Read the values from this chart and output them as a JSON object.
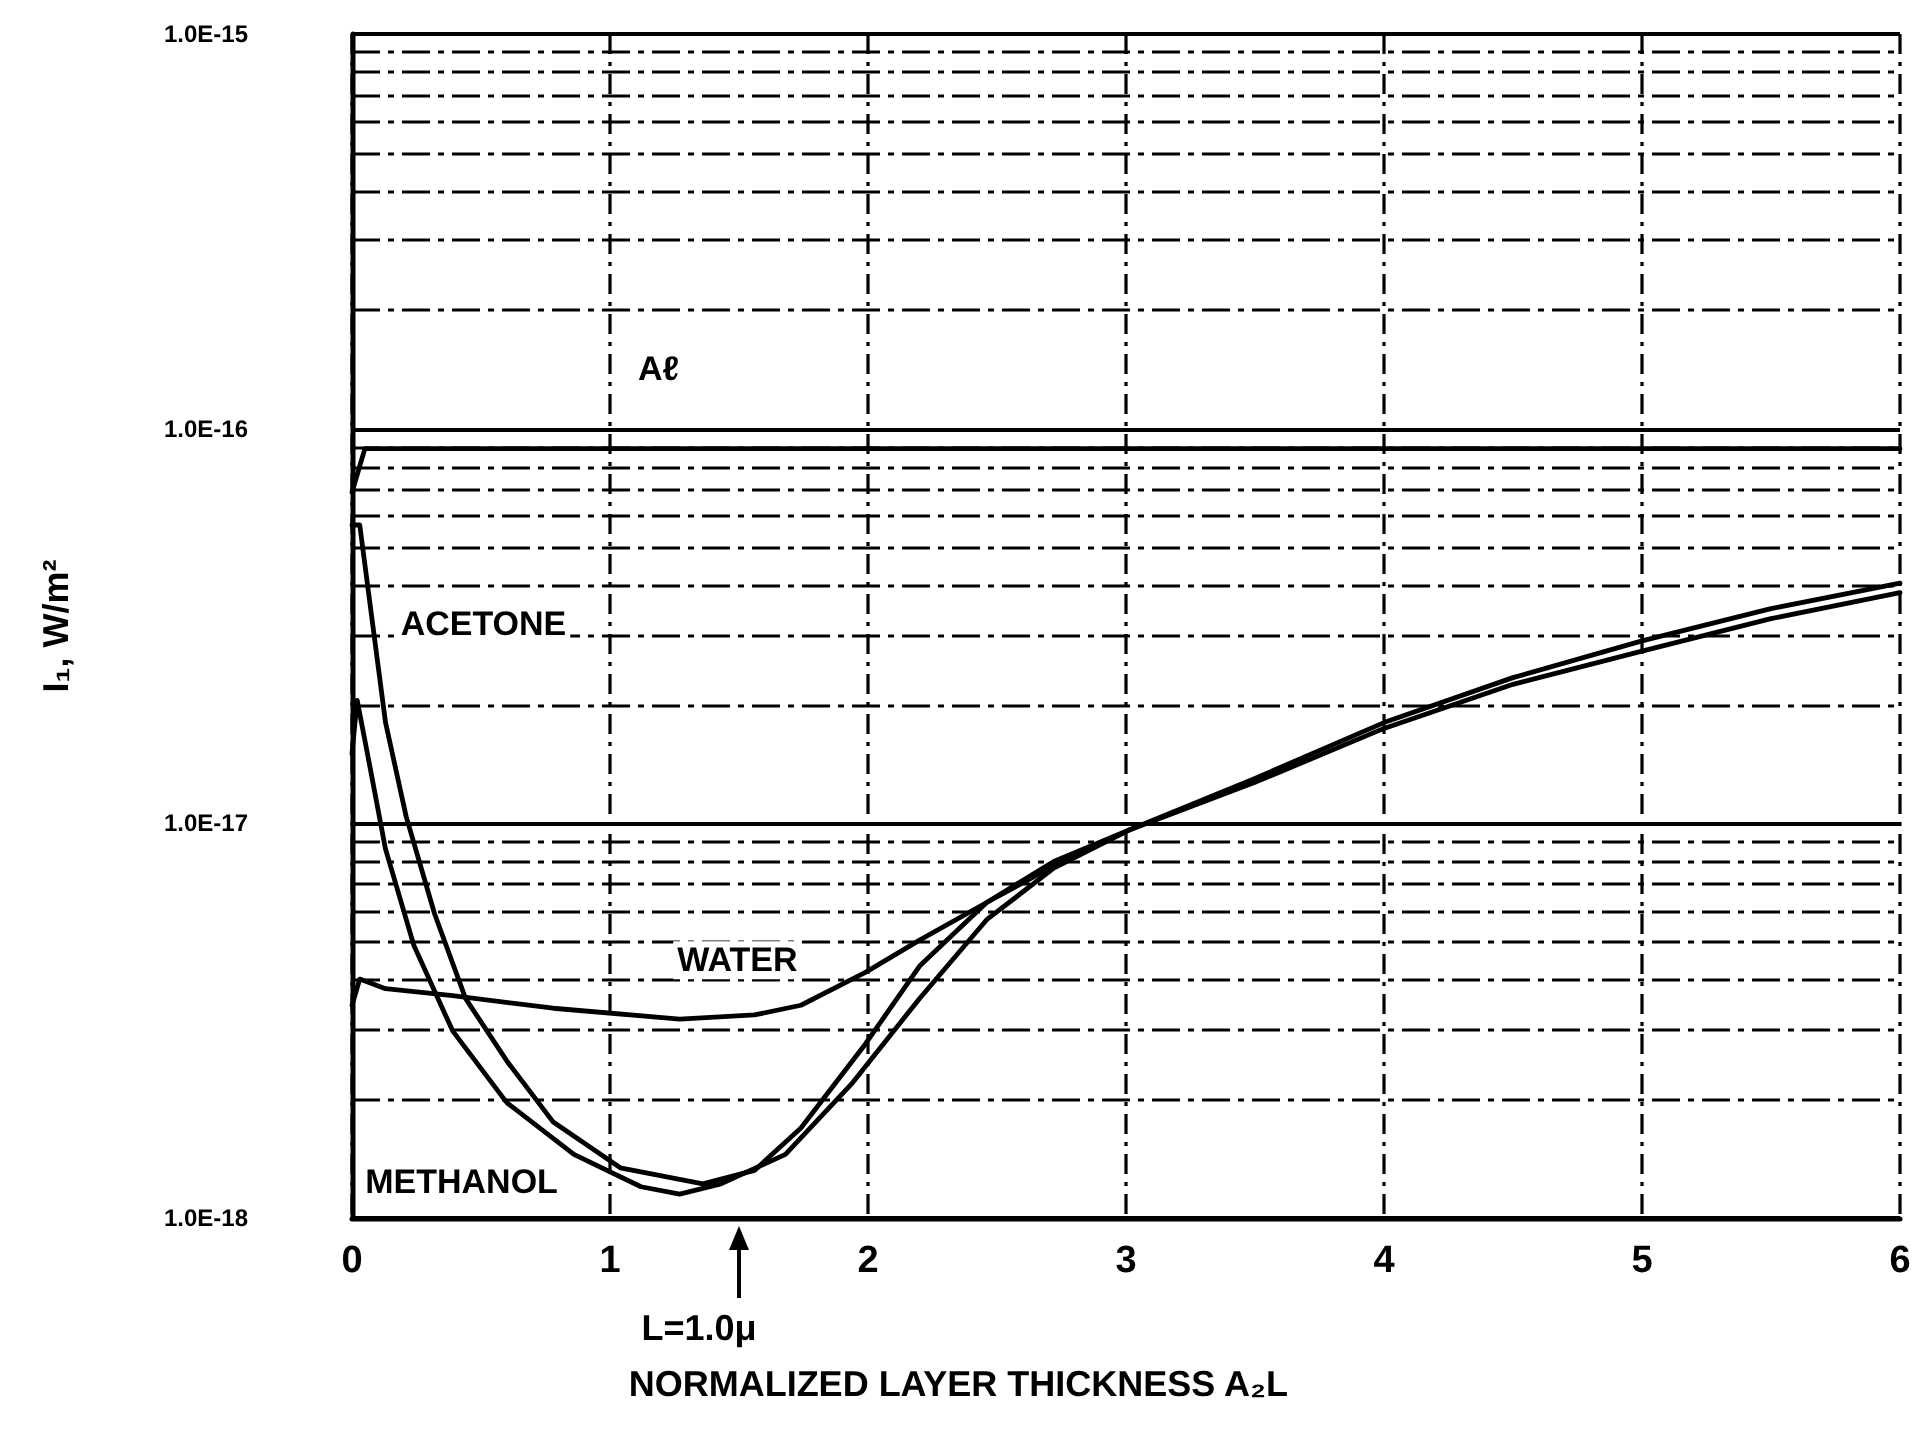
{
  "chart_data": {
    "type": "line",
    "xlabel": "NORMALIZED LAYER THICKNESS A₂L",
    "ylabel": "I₁, W/m²",
    "log": "y",
    "xlim": [
      0,
      6
    ],
    "xticks": [
      0,
      1,
      2,
      3,
      4,
      5,
      6
    ],
    "ylim": [
      1e-18,
      1e-15
    ],
    "yticks": [
      {
        "value": 1e-18,
        "label": "1.0E-18"
      },
      {
        "value": 1e-17,
        "label": "1.0E-17"
      },
      {
        "value": 1e-16,
        "label": "1.0E-16"
      },
      {
        "value": 1e-15,
        "label": "1.0E-15"
      }
    ],
    "grid": true,
    "legend": false,
    "marker": "none",
    "line_style": "solid",
    "annotations": [
      "L=1.0μ"
    ],
    "series": [
      {
        "name": "Aℓ",
        "color": "#000000",
        "x": [
          0,
          0.05,
          0.5,
          1,
          2,
          3,
          4,
          5,
          6
        ],
        "values": [
          6.9e-17,
          8.9e-17,
          8.9e-17,
          8.9e-17,
          8.9e-17,
          8.9e-17,
          8.9e-17,
          8.9e-17,
          8.9e-17
        ]
      },
      {
        "name": "ACETONE",
        "color": "#000000",
        "x": [
          0,
          0.03,
          0.08,
          0.13,
          0.21,
          0.32,
          0.44,
          0.6,
          0.78,
          1.04,
          1.36,
          1.56,
          1.74,
          1.99,
          2.2,
          2.46,
          2.72,
          3.01,
          3.5,
          4,
          4.5,
          5,
          5.5,
          6
        ],
        "values": [
          5.7e-17,
          5.7e-17,
          3.2e-17,
          1.8e-17,
          1.04e-17,
          5.9e-18,
          3.6e-18,
          2.5e-18,
          1.75e-18,
          1.34e-18,
          1.22e-18,
          1.32e-18,
          1.69e-18,
          2.76e-18,
          4.35e-18,
          6.3e-18,
          8e-18,
          9.6e-18,
          1.3e-17,
          1.8e-17,
          2.34e-17,
          2.9e-17,
          3.5e-17,
          4.06e-17
        ]
      },
      {
        "name": "METHANOL",
        "color": "#000000",
        "x": [
          0,
          0.02,
          0.06,
          0.13,
          0.24,
          0.39,
          0.6,
          0.86,
          1.12,
          1.27,
          1.43,
          1.68,
          1.94,
          2.2,
          2.46,
          2.72,
          3.01,
          3.5,
          4,
          4.5,
          5,
          5.5,
          6
        ],
        "values": [
          1.5e-17,
          2.05e-17,
          1.5e-17,
          8.6e-18,
          4.9e-18,
          2.98e-18,
          1.96e-18,
          1.45e-18,
          1.2e-18,
          1.15e-18,
          1.22e-18,
          1.45e-18,
          2.2e-18,
          3.6e-18,
          5.7e-18,
          7.7e-18,
          9.6e-18,
          1.27e-17,
          1.74e-17,
          2.25e-17,
          2.73e-17,
          3.3e-17,
          3.84e-17
        ]
      },
      {
        "name": "WATER",
        "color": "#000000",
        "x": [
          0,
          0.03,
          0.13,
          0.39,
          0.78,
          1.27,
          1.56,
          1.74,
          1.99,
          2.2,
          2.46,
          2.72,
          3.01
        ],
        "values": [
          3.46e-18,
          4.03e-18,
          3.81e-18,
          3.66e-18,
          3.4e-18,
          3.19e-18,
          3.27e-18,
          3.46e-18,
          4.19e-18,
          5.06e-18,
          6.3e-18,
          7.8e-18,
          9.6e-18
        ]
      }
    ]
  }
}
